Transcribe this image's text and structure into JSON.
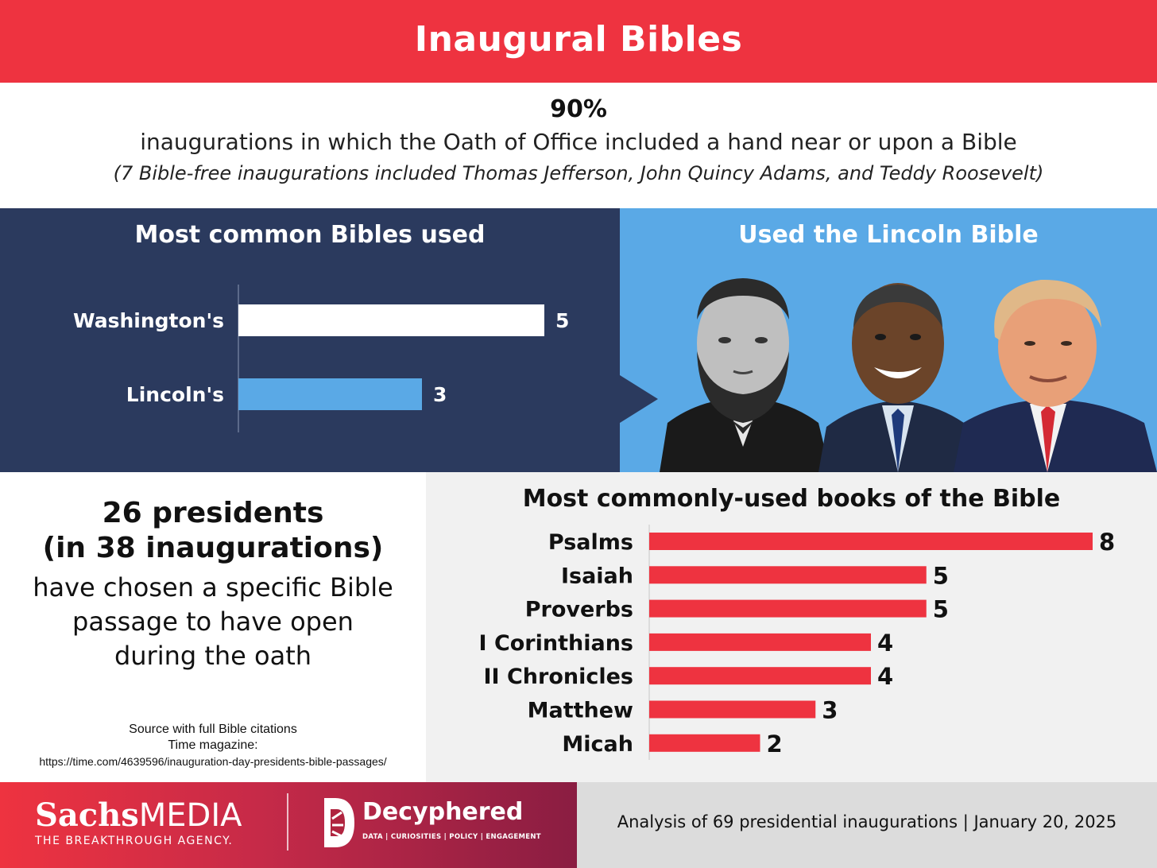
{
  "header": {
    "title": "Inaugural Bibles"
  },
  "stat": {
    "percent": "90%",
    "line": "inaugurations in which the Oath of Office included a hand near or upon a Bible",
    "note": "(7 Bible-free inaugurations included Thomas Jefferson, John Quincy Adams, and Teddy Roosevelt)"
  },
  "lincoln_panel": {
    "title": "Used the Lincoln Bible",
    "portraits": [
      "abraham-lincoln-portrait",
      "barack-obama-portrait",
      "donald-trump-portrait"
    ]
  },
  "passage": {
    "headline_1": "26 presidents",
    "headline_2": "(in 38 inaugurations)",
    "body": "have chosen a specific Bible passage to have open during the oath"
  },
  "source": {
    "line1": "Source with full Bible citations",
    "line2": "Time magazine:",
    "url": "https://time.com/4639596/inauguration-day-presidents-bible-passages/"
  },
  "footer": {
    "brand_bold": "Sachs",
    "brand_light": "MEDIA",
    "brand_tag": "THE BREAKTHROUGH AGENCY.",
    "partner_name": "Decyphered",
    "partner_tag": "DATA | CURIOSITIES | POLICY | ENGAGEMENT",
    "analysis": "Analysis of 69 presidential inaugurations | January 20, 2025"
  },
  "colors": {
    "red": "#ee3340",
    "navy": "#2b3a5e",
    "light_blue": "#5aa9e6",
    "bar_bg": "#f1f1f1"
  },
  "chart_data": [
    {
      "type": "bar",
      "orientation": "horizontal",
      "title": "Most common Bibles used",
      "categories": [
        "Washington's",
        "Lincoln's"
      ],
      "values": [
        5,
        3
      ],
      "colors": [
        "#ffffff",
        "#5aa9e6"
      ],
      "data_labels": true,
      "grid": false
    },
    {
      "type": "bar",
      "orientation": "horizontal",
      "title": "Most commonly-used books of the Bible",
      "categories": [
        "Psalms",
        "Isaiah",
        "Proverbs",
        "I Corinthians",
        "II Chronicles",
        "Matthew",
        "Micah"
      ],
      "values": [
        8,
        5,
        5,
        4,
        4,
        3,
        2
      ],
      "color": "#ee3340",
      "data_labels": true,
      "grid": false
    }
  ]
}
